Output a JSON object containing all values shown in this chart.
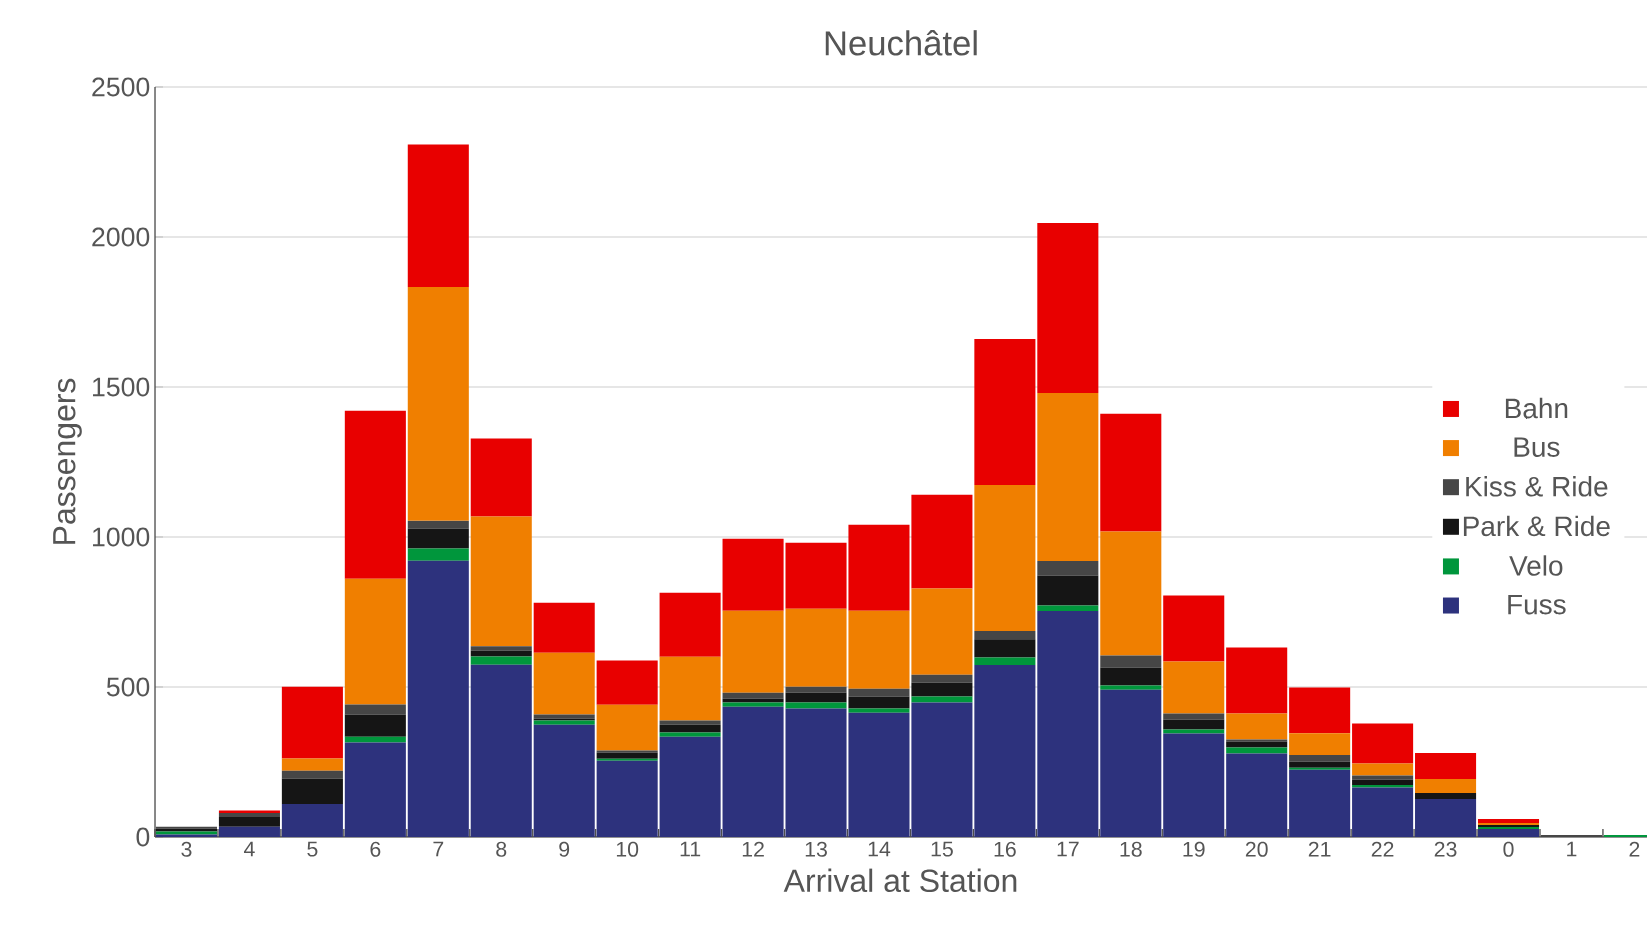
{
  "chart_data": {
    "type": "bar",
    "title": "Neuchâtel",
    "xlabel": "Arrival at Station",
    "ylabel": "Passengers",
    "categories": [
      "3",
      "4",
      "5",
      "6",
      "7",
      "8",
      "9",
      "10",
      "11",
      "12",
      "13",
      "14",
      "15",
      "16",
      "17",
      "18",
      "19",
      "20",
      "21",
      "22",
      "23",
      "0",
      "1",
      "2"
    ],
    "stacked": true,
    "grid": "y",
    "legend": "right",
    "ylim": [
      0,
      2500
    ],
    "yticks": [
      0,
      500,
      1000,
      1500,
      2000,
      2500
    ],
    "series": [
      {
        "name": "Fuss",
        "color": "#2d327d",
        "values": [
          8,
          34,
          110,
          315,
          921,
          574,
          374,
          254,
          334,
          434,
          428,
          414,
          448,
          573,
          753,
          491,
          345,
          278,
          224,
          165,
          127,
          27,
          0,
          0
        ]
      },
      {
        "name": "Velo",
        "color": "#00963c",
        "values": [
          10,
          0,
          0,
          19,
          41,
          28,
          14,
          7,
          14,
          14,
          20,
          14,
          20,
          25,
          19,
          14,
          13,
          20,
          7,
          8,
          0,
          6,
          0,
          7
        ]
      },
      {
        "name": "Park & Ride",
        "color": "#151515",
        "values": [
          10,
          33,
          85,
          74,
          66,
          20,
          6,
          20,
          26,
          13,
          33,
          40,
          46,
          61,
          100,
          60,
          34,
          20,
          20,
          18,
          20,
          7,
          0,
          0
        ]
      },
      {
        "name": "Kiss & Ride",
        "color": "#464646",
        "values": [
          6,
          13,
          26,
          34,
          26,
          14,
          14,
          7,
          14,
          20,
          20,
          26,
          27,
          28,
          48,
          40,
          20,
          7,
          22,
          14,
          0,
          0,
          7,
          0
        ]
      },
      {
        "name": "Bus",
        "color": "#f07f00",
        "values": [
          0,
          0,
          41,
          419,
          779,
          432,
          206,
          153,
          213,
          273,
          260,
          260,
          287,
          486,
          560,
          413,
          173,
          87,
          73,
          40,
          46,
          7,
          0,
          0
        ]
      },
      {
        "name": "Bahn",
        "color": "#e80000",
        "values": [
          0,
          8,
          239,
          560,
          475,
          260,
          167,
          147,
          213,
          240,
          220,
          287,
          313,
          487,
          567,
          393,
          220,
          220,
          152,
          133,
          87,
          13,
          0,
          0
        ]
      }
    ]
  }
}
